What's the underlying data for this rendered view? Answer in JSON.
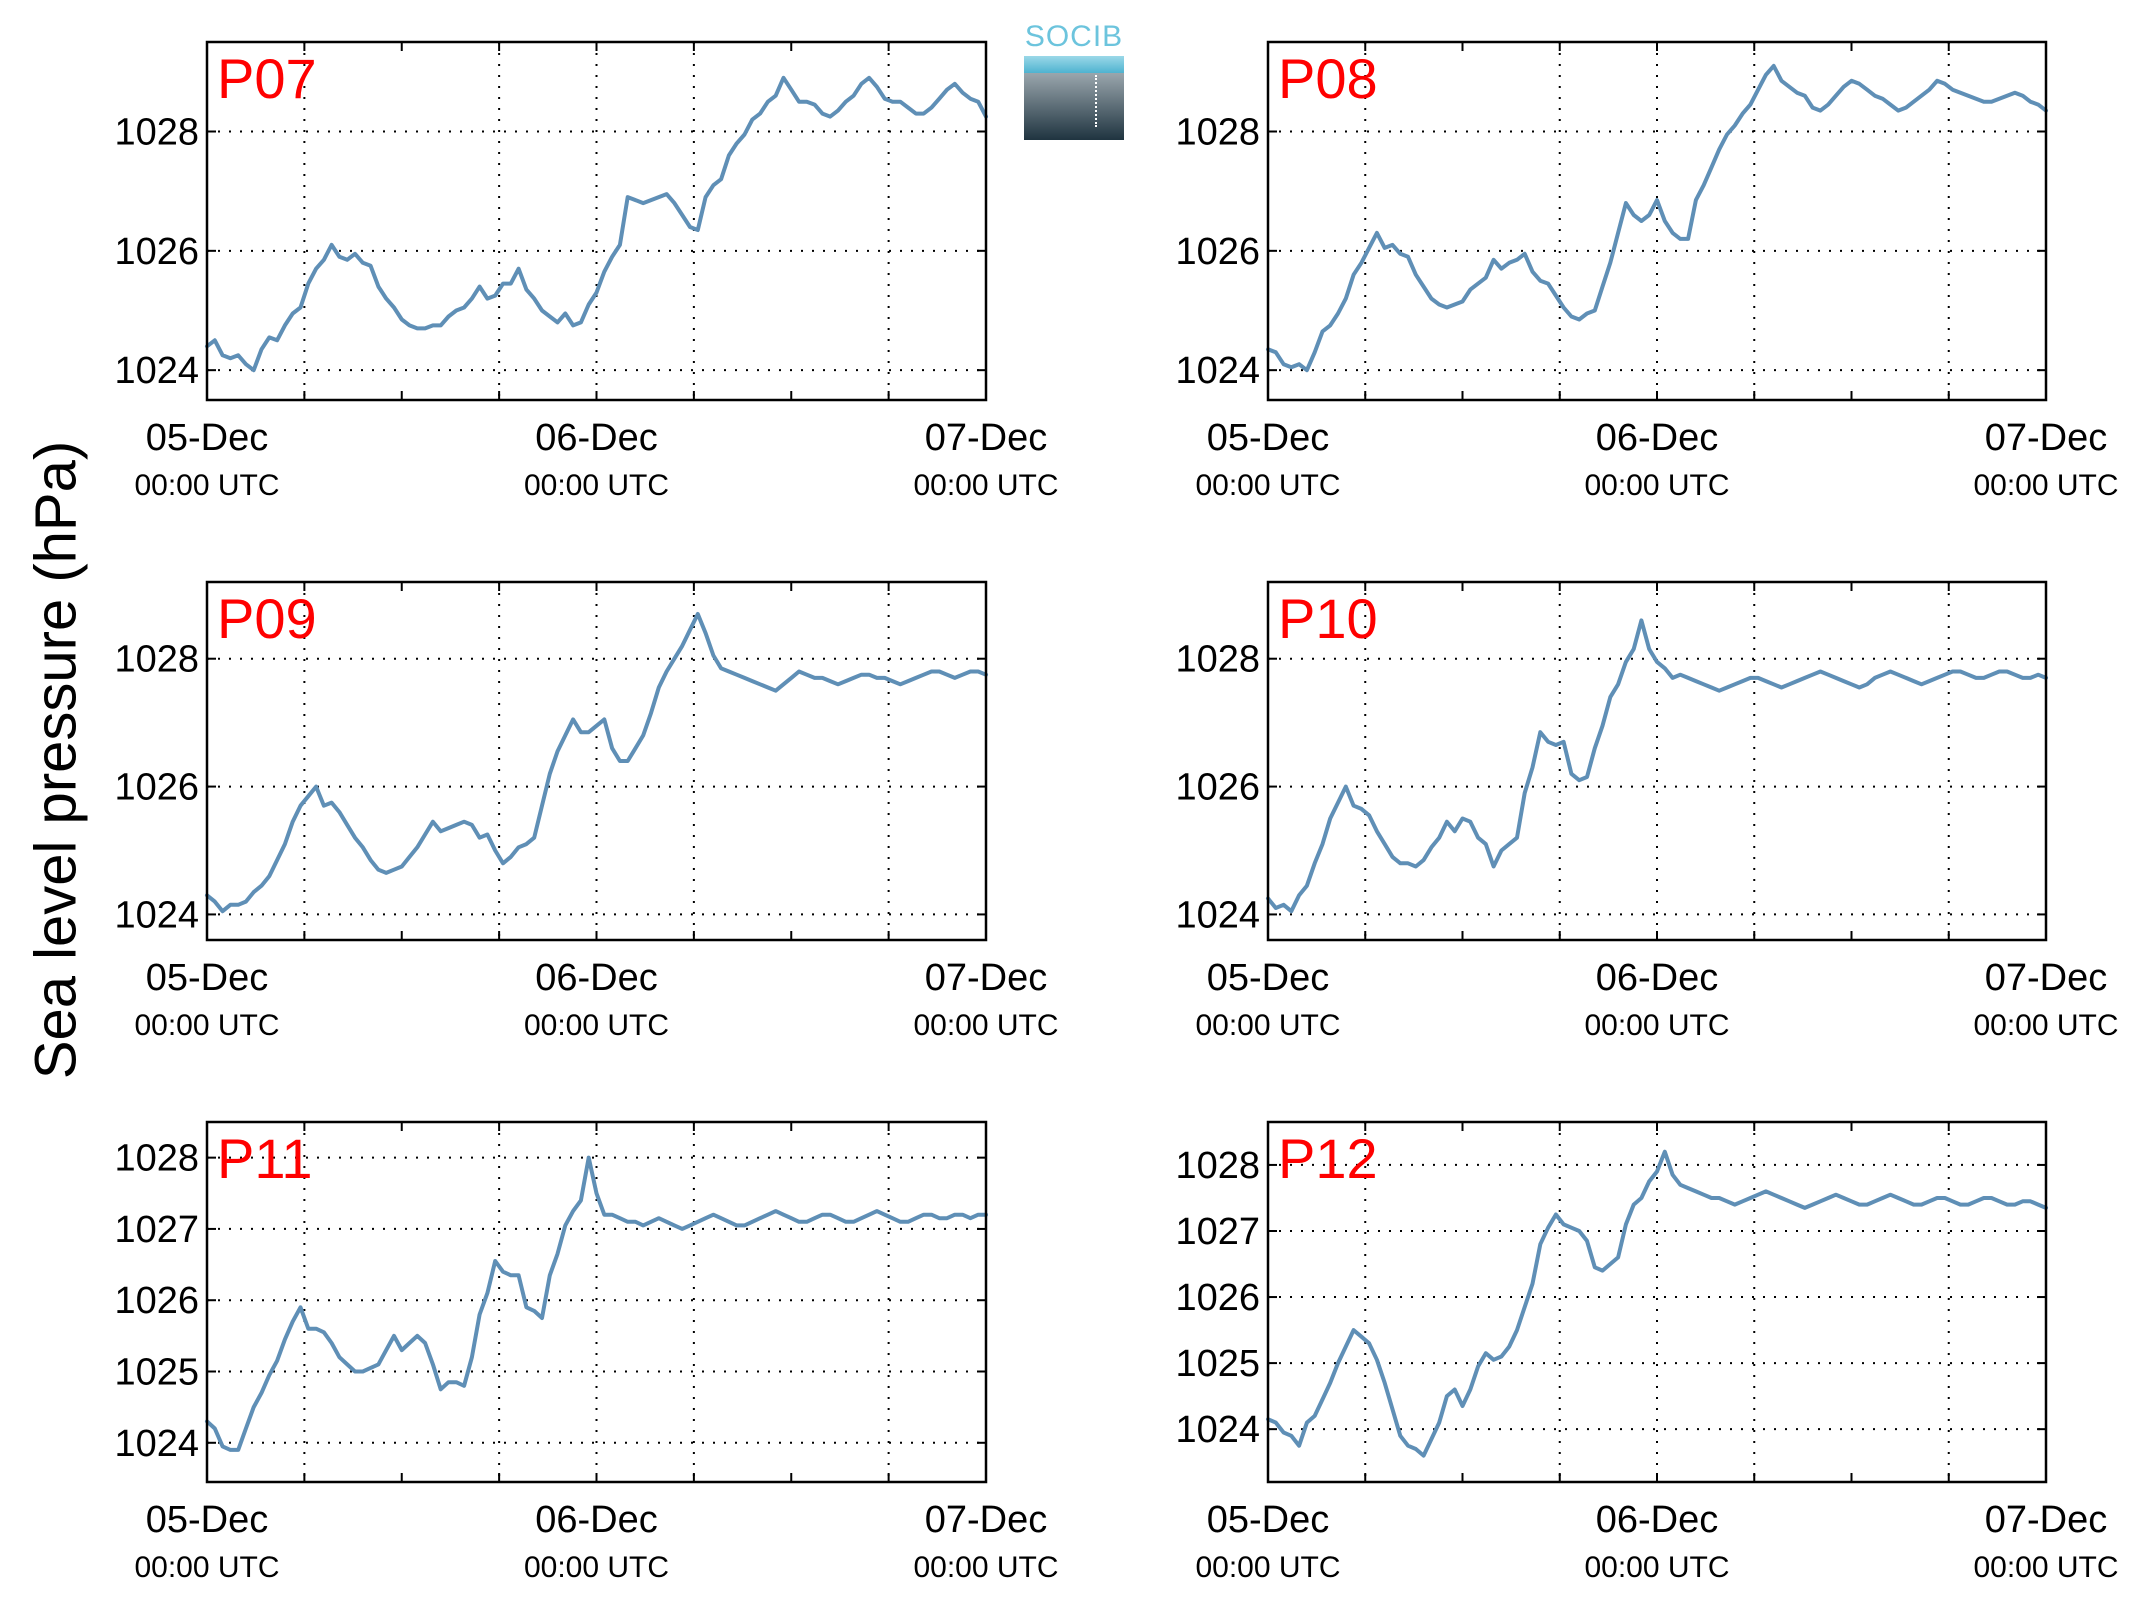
{
  "ylabel": "Sea level pressure (hPa)",
  "logo_text": "SOCIB",
  "colors": {
    "line": "#5f8fb6",
    "panel_label": "#ff0000",
    "grid": "#000000"
  },
  "chart_data": [
    {
      "type": "line",
      "label": "P07",
      "ylim": [
        1023.5,
        1029.5
      ],
      "yticks": [
        1024,
        1026,
        1028
      ],
      "x": [
        0,
        4,
        8,
        12,
        16,
        20,
        24,
        28,
        32,
        36,
        40,
        44,
        48,
        52,
        56,
        60,
        64,
        68,
        72,
        76,
        80,
        84,
        88,
        92,
        96,
        100,
        104,
        108,
        112,
        116,
        120,
        124,
        128,
        132,
        136,
        140,
        144,
        148,
        152,
        156,
        160,
        164,
        168,
        172,
        176,
        180,
        184,
        188,
        192,
        196,
        200,
        204,
        208,
        212,
        216,
        220,
        224,
        228,
        232,
        236,
        240,
        244,
        248,
        252,
        256,
        260,
        264,
        268,
        272,
        276,
        280,
        284,
        288,
        292,
        296,
        300,
        304,
        308,
        312,
        316,
        320,
        324,
        328,
        332,
        336,
        340,
        344,
        348,
        352,
        356,
        360,
        364,
        368,
        372,
        376,
        380,
        384,
        388,
        392,
        396,
        400
      ],
      "y": [
        1024.4,
        1024.5,
        1024.25,
        1024.2,
        1024.25,
        1024.1,
        1024,
        1024.35,
        1024.55,
        1024.5,
        1024.75,
        1024.95,
        1025.05,
        1025.45,
        1025.7,
        1025.85,
        1026.1,
        1025.9,
        1025.85,
        1025.95,
        1025.8,
        1025.75,
        1025.4,
        1025.2,
        1025.05,
        1024.85,
        1024.75,
        1024.7,
        1024.7,
        1024.75,
        1024.75,
        1024.9,
        1025,
        1025.05,
        1025.2,
        1025.4,
        1025.2,
        1025.25,
        1025.45,
        1025.45,
        1025.7,
        1025.35,
        1025.2,
        1025,
        1024.9,
        1024.8,
        1024.95,
        1024.75,
        1024.8,
        1025.1,
        1025.3,
        1025.65,
        1025.9,
        1026.1,
        1026.9,
        1026.85,
        1026.8,
        1026.85,
        1026.9,
        1026.95,
        1026.8,
        1026.6,
        1026.4,
        1026.35,
        1026.9,
        1027.1,
        1027.2,
        1027.6,
        1027.8,
        1027.95,
        1028.2,
        1028.3,
        1028.5,
        1028.6,
        1028.9,
        1028.7,
        1028.5,
        1028.5,
        1028.45,
        1028.3,
        1028.25,
        1028.35,
        1028.5,
        1028.6,
        1028.8,
        1028.9,
        1028.75,
        1028.55,
        1028.5,
        1028.5,
        1028.4,
        1028.3,
        1028.3,
        1028.4,
        1028.55,
        1028.7,
        1028.8,
        1028.65,
        1028.55,
        1028.5,
        1028.25
      ]
    },
    {
      "type": "line",
      "label": "P08",
      "ylim": [
        1023.5,
        1029.5
      ],
      "yticks": [
        1024,
        1026,
        1028
      ],
      "x": [
        0,
        4,
        8,
        12,
        16,
        20,
        24,
        28,
        32,
        36,
        40,
        44,
        48,
        52,
        56,
        60,
        64,
        68,
        72,
        76,
        80,
        84,
        88,
        92,
        96,
        100,
        104,
        108,
        112,
        116,
        120,
        124,
        128,
        132,
        136,
        140,
        144,
        148,
        152,
        156,
        160,
        164,
        168,
        172,
        176,
        180,
        184,
        188,
        192,
        196,
        200,
        204,
        208,
        212,
        216,
        220,
        224,
        228,
        232,
        236,
        240,
        244,
        248,
        252,
        256,
        260,
        264,
        268,
        272,
        276,
        280,
        284,
        288,
        292,
        296,
        300,
        304,
        308,
        312,
        316,
        320,
        324,
        328,
        332,
        336,
        340,
        344,
        348,
        352,
        356,
        360,
        364,
        368,
        372,
        376,
        380,
        384,
        388,
        392,
        396,
        400
      ],
      "y": [
        1024.35,
        1024.3,
        1024.1,
        1024.05,
        1024.1,
        1024,
        1024.3,
        1024.65,
        1024.75,
        1024.95,
        1025.2,
        1025.6,
        1025.8,
        1026.05,
        1026.3,
        1026.05,
        1026.1,
        1025.95,
        1025.9,
        1025.6,
        1025.4,
        1025.2,
        1025.1,
        1025.05,
        1025.1,
        1025.15,
        1025.35,
        1025.45,
        1025.55,
        1025.85,
        1025.7,
        1025.8,
        1025.85,
        1025.95,
        1025.65,
        1025.5,
        1025.45,
        1025.25,
        1025.05,
        1024.9,
        1024.85,
        1024.95,
        1025,
        1025.4,
        1025.8,
        1026.3,
        1026.8,
        1026.6,
        1026.5,
        1026.6,
        1026.85,
        1026.5,
        1026.3,
        1026.2,
        1026.2,
        1026.85,
        1027.1,
        1027.4,
        1027.7,
        1027.95,
        1028.1,
        1028.3,
        1028.45,
        1028.7,
        1028.95,
        1029.1,
        1028.85,
        1028.75,
        1028.65,
        1028.6,
        1028.4,
        1028.35,
        1028.45,
        1028.6,
        1028.75,
        1028.85,
        1028.8,
        1028.7,
        1028.6,
        1028.55,
        1028.45,
        1028.35,
        1028.4,
        1028.5,
        1028.6,
        1028.7,
        1028.85,
        1028.8,
        1028.7,
        1028.65,
        1028.6,
        1028.55,
        1028.5,
        1028.5,
        1028.55,
        1028.6,
        1028.65,
        1028.6,
        1028.5,
        1028.45,
        1028.35
      ]
    },
    {
      "type": "line",
      "label": "P09",
      "ylim": [
        1023.6,
        1029.2
      ],
      "yticks": [
        1024,
        1026,
        1028
      ],
      "x": [
        0,
        4,
        8,
        12,
        16,
        20,
        24,
        28,
        32,
        36,
        40,
        44,
        48,
        52,
        56,
        60,
        64,
        68,
        72,
        76,
        80,
        84,
        88,
        92,
        96,
        100,
        104,
        108,
        112,
        116,
        120,
        124,
        128,
        132,
        136,
        140,
        144,
        148,
        152,
        156,
        160,
        164,
        168,
        172,
        176,
        180,
        184,
        188,
        192,
        196,
        200,
        204,
        208,
        212,
        216,
        220,
        224,
        228,
        232,
        236,
        240,
        244,
        248,
        252,
        256,
        260,
        264,
        268,
        272,
        276,
        280,
        284,
        288,
        292,
        296,
        300,
        304,
        308,
        312,
        316,
        320,
        324,
        328,
        332,
        336,
        340,
        344,
        348,
        352,
        356,
        360,
        364,
        368,
        372,
        376,
        380,
        384,
        388,
        392,
        396,
        400
      ],
      "y": [
        1024.3,
        1024.2,
        1024.05,
        1024.15,
        1024.15,
        1024.2,
        1024.35,
        1024.45,
        1024.6,
        1024.85,
        1025.1,
        1025.45,
        1025.7,
        1025.85,
        1026,
        1025.7,
        1025.75,
        1025.6,
        1025.4,
        1025.2,
        1025.05,
        1024.85,
        1024.7,
        1024.65,
        1024.7,
        1024.75,
        1024.9,
        1025.05,
        1025.25,
        1025.45,
        1025.3,
        1025.35,
        1025.4,
        1025.45,
        1025.4,
        1025.2,
        1025.25,
        1025,
        1024.8,
        1024.9,
        1025.05,
        1025.1,
        1025.2,
        1025.7,
        1026.2,
        1026.55,
        1026.8,
        1027.05,
        1026.85,
        1026.85,
        1026.95,
        1027.05,
        1026.6,
        1026.4,
        1026.4,
        1026.6,
        1026.8,
        1027.15,
        1027.55,
        1027.8,
        1028,
        1028.2,
        1028.45,
        1028.7,
        1028.4,
        1028.05,
        1027.85,
        1027.8,
        1027.75,
        1027.7,
        1027.65,
        1027.6,
        1027.55,
        1027.5,
        1027.6,
        1027.7,
        1027.8,
        1027.75,
        1027.7,
        1027.7,
        1027.65,
        1027.6,
        1027.65,
        1027.7,
        1027.75,
        1027.75,
        1027.7,
        1027.7,
        1027.65,
        1027.6,
        1027.65,
        1027.7,
        1027.75,
        1027.8,
        1027.8,
        1027.75,
        1027.7,
        1027.75,
        1027.8,
        1027.8,
        1027.75
      ]
    },
    {
      "type": "line",
      "label": "P10",
      "ylim": [
        1023.6,
        1029.2
      ],
      "yticks": [
        1024,
        1026,
        1028
      ],
      "x": [
        0,
        4,
        8,
        12,
        16,
        20,
        24,
        28,
        32,
        36,
        40,
        44,
        48,
        52,
        56,
        60,
        64,
        68,
        72,
        76,
        80,
        84,
        88,
        92,
        96,
        100,
        104,
        108,
        112,
        116,
        120,
        124,
        128,
        132,
        136,
        140,
        144,
        148,
        152,
        156,
        160,
        164,
        168,
        172,
        176,
        180,
        184,
        188,
        192,
        196,
        200,
        204,
        208,
        212,
        216,
        220,
        224,
        228,
        232,
        236,
        240,
        244,
        248,
        252,
        256,
        260,
        264,
        268,
        272,
        276,
        280,
        284,
        288,
        292,
        296,
        300,
        304,
        308,
        312,
        316,
        320,
        324,
        328,
        332,
        336,
        340,
        344,
        348,
        352,
        356,
        360,
        364,
        368,
        372,
        376,
        380,
        384,
        388,
        392,
        396,
        400
      ],
      "y": [
        1024.25,
        1024.1,
        1024.15,
        1024.05,
        1024.3,
        1024.45,
        1024.8,
        1025.1,
        1025.5,
        1025.75,
        1026,
        1025.7,
        1025.65,
        1025.55,
        1025.3,
        1025.1,
        1024.9,
        1024.8,
        1024.8,
        1024.75,
        1024.85,
        1025.05,
        1025.2,
        1025.45,
        1025.3,
        1025.5,
        1025.45,
        1025.2,
        1025.1,
        1024.75,
        1025,
        1025.1,
        1025.2,
        1025.9,
        1026.3,
        1026.85,
        1026.7,
        1026.65,
        1026.7,
        1026.2,
        1026.1,
        1026.15,
        1026.6,
        1026.95,
        1027.4,
        1027.6,
        1027.95,
        1028.15,
        1028.6,
        1028.15,
        1027.95,
        1027.85,
        1027.7,
        1027.75,
        1027.7,
        1027.65,
        1027.6,
        1027.55,
        1027.5,
        1027.55,
        1027.6,
        1027.65,
        1027.7,
        1027.7,
        1027.65,
        1027.6,
        1027.55,
        1027.6,
        1027.65,
        1027.7,
        1027.75,
        1027.8,
        1027.75,
        1027.7,
        1027.65,
        1027.6,
        1027.55,
        1027.6,
        1027.7,
        1027.75,
        1027.8,
        1027.75,
        1027.7,
        1027.65,
        1027.6,
        1027.65,
        1027.7,
        1027.75,
        1027.8,
        1027.8,
        1027.75,
        1027.7,
        1027.7,
        1027.75,
        1027.8,
        1027.8,
        1027.75,
        1027.7,
        1027.7,
        1027.75,
        1027.7
      ]
    },
    {
      "type": "line",
      "label": "P11",
      "ylim": [
        1023.45,
        1028.5
      ],
      "yticks": [
        1024,
        1025,
        1026,
        1027,
        1028
      ],
      "x": [
        0,
        4,
        8,
        12,
        16,
        20,
        24,
        28,
        32,
        36,
        40,
        44,
        48,
        52,
        56,
        60,
        64,
        68,
        72,
        76,
        80,
        84,
        88,
        92,
        96,
        100,
        104,
        108,
        112,
        116,
        120,
        124,
        128,
        132,
        136,
        140,
        144,
        148,
        152,
        156,
        160,
        164,
        168,
        172,
        176,
        180,
        184,
        188,
        192,
        196,
        200,
        204,
        208,
        212,
        216,
        220,
        224,
        228,
        232,
        236,
        240,
        244,
        248,
        252,
        256,
        260,
        264,
        268,
        272,
        276,
        280,
        284,
        288,
        292,
        296,
        300,
        304,
        308,
        312,
        316,
        320,
        324,
        328,
        332,
        336,
        340,
        344,
        348,
        352,
        356,
        360,
        364,
        368,
        372,
        376,
        380,
        384,
        388,
        392,
        396,
        400
      ],
      "y": [
        1024.3,
        1024.2,
        1023.95,
        1023.9,
        1023.9,
        1024.2,
        1024.5,
        1024.7,
        1024.95,
        1025.15,
        1025.45,
        1025.7,
        1025.9,
        1025.6,
        1025.6,
        1025.55,
        1025.4,
        1025.2,
        1025.1,
        1025,
        1025,
        1025.05,
        1025.1,
        1025.3,
        1025.5,
        1025.3,
        1025.4,
        1025.5,
        1025.4,
        1025.1,
        1024.75,
        1024.85,
        1024.85,
        1024.8,
        1025.2,
        1025.8,
        1026.1,
        1026.55,
        1026.4,
        1026.35,
        1026.35,
        1025.9,
        1025.85,
        1025.75,
        1026.35,
        1026.65,
        1027.05,
        1027.25,
        1027.4,
        1028,
        1027.5,
        1027.2,
        1027.2,
        1027.15,
        1027.1,
        1027.1,
        1027.05,
        1027.1,
        1027.15,
        1027.1,
        1027.05,
        1027,
        1027.05,
        1027.1,
        1027.15,
        1027.2,
        1027.15,
        1027.1,
        1027.05,
        1027.05,
        1027.1,
        1027.15,
        1027.2,
        1027.25,
        1027.2,
        1027.15,
        1027.1,
        1027.1,
        1027.15,
        1027.2,
        1027.2,
        1027.15,
        1027.1,
        1027.1,
        1027.15,
        1027.2,
        1027.25,
        1027.2,
        1027.15,
        1027.1,
        1027.1,
        1027.15,
        1027.2,
        1027.2,
        1027.15,
        1027.15,
        1027.2,
        1027.2,
        1027.15,
        1027.2,
        1027.2
      ]
    },
    {
      "type": "line",
      "label": "P12",
      "ylim": [
        1023.2,
        1028.65
      ],
      "yticks": [
        1024,
        1025,
        1026,
        1027,
        1028
      ],
      "x": [
        0,
        4,
        8,
        12,
        16,
        20,
        24,
        28,
        32,
        36,
        40,
        44,
        48,
        52,
        56,
        60,
        64,
        68,
        72,
        76,
        80,
        84,
        88,
        92,
        96,
        100,
        104,
        108,
        112,
        116,
        120,
        124,
        128,
        132,
        136,
        140,
        144,
        148,
        152,
        156,
        160,
        164,
        168,
        172,
        176,
        180,
        184,
        188,
        192,
        196,
        200,
        204,
        208,
        212,
        216,
        220,
        224,
        228,
        232,
        236,
        240,
        244,
        248,
        252,
        256,
        260,
        264,
        268,
        272,
        276,
        280,
        284,
        288,
        292,
        296,
        300,
        304,
        308,
        312,
        316,
        320,
        324,
        328,
        332,
        336,
        340,
        344,
        348,
        352,
        356,
        360,
        364,
        368,
        372,
        376,
        380,
        384,
        388,
        392,
        396,
        400
      ],
      "y": [
        1024.15,
        1024.1,
        1023.95,
        1023.9,
        1023.75,
        1024.1,
        1024.2,
        1024.45,
        1024.7,
        1025,
        1025.25,
        1025.5,
        1025.4,
        1025.3,
        1025.05,
        1024.7,
        1024.3,
        1023.9,
        1023.75,
        1023.7,
        1023.6,
        1023.85,
        1024.1,
        1024.5,
        1024.6,
        1024.35,
        1024.6,
        1024.95,
        1025.15,
        1025.05,
        1025.1,
        1025.25,
        1025.5,
        1025.85,
        1026.2,
        1026.8,
        1027.05,
        1027.25,
        1027.1,
        1027.05,
        1027,
        1026.85,
        1026.45,
        1026.4,
        1026.5,
        1026.6,
        1027.1,
        1027.4,
        1027.5,
        1027.75,
        1027.9,
        1028.2,
        1027.85,
        1027.7,
        1027.65,
        1027.6,
        1027.55,
        1027.5,
        1027.5,
        1027.45,
        1027.4,
        1027.45,
        1027.5,
        1027.55,
        1027.6,
        1027.55,
        1027.5,
        1027.45,
        1027.4,
        1027.35,
        1027.4,
        1027.45,
        1027.5,
        1027.55,
        1027.5,
        1027.45,
        1027.4,
        1027.4,
        1027.45,
        1027.5,
        1027.55,
        1027.5,
        1027.45,
        1027.4,
        1027.4,
        1027.45,
        1027.5,
        1027.5,
        1027.45,
        1027.4,
        1027.4,
        1027.45,
        1027.5,
        1027.5,
        1027.45,
        1027.4,
        1027.4,
        1027.45,
        1027.45,
        1027.4,
        1027.35
      ]
    }
  ],
  "x_ticks": [
    {
      "date": "05-Dec",
      "time": "00:00 UTC"
    },
    {
      "date": "06-Dec",
      "time": "00:00 UTC"
    },
    {
      "date": "07-Dec",
      "time": "00:00 UTC"
    }
  ]
}
